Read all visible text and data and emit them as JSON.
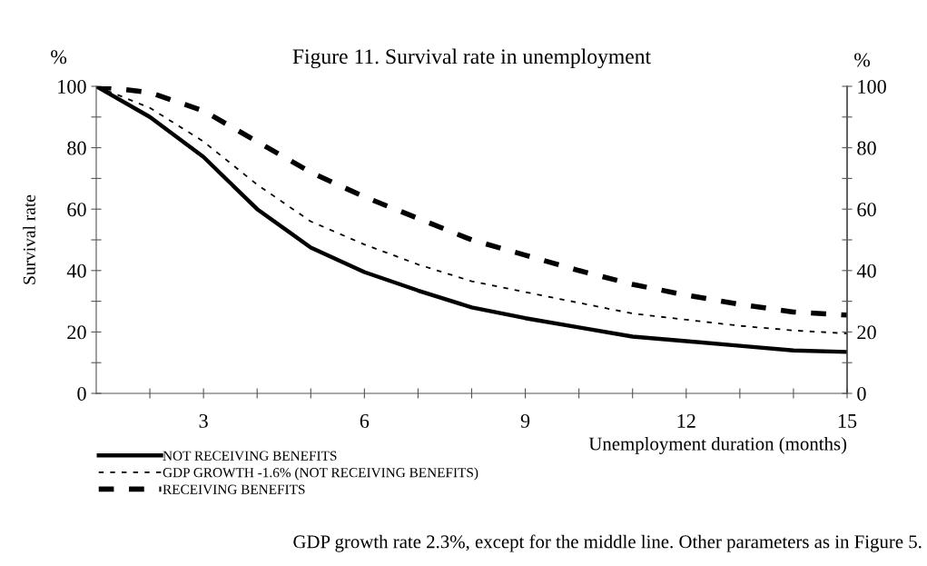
{
  "chart_data": {
    "type": "line",
    "title": "Figure 11. Survival rate in unemployment",
    "xlabel": "Unemployment duration (months)",
    "ylabel": "Survival rate",
    "y2label": "%",
    "annotations": [
      "%",
      "GDP growth rate 2.3%, except for the middle line. Other parameters as in Figure 5."
    ],
    "x": [
      1,
      2,
      3,
      4,
      5,
      6,
      7,
      8,
      9,
      10,
      11,
      12,
      13,
      14,
      15
    ],
    "series": [
      {
        "name": "NOT RECEIVING BENEFITS",
        "color": "#000000",
        "line_style": "solid",
        "values": [
          100,
          90,
          77,
          60,
          47.5,
          39.5,
          33.5,
          28,
          24.5,
          21.5,
          18.5,
          17,
          15.5,
          14,
          13.5
        ]
      },
      {
        "name": "GDP GROWTH -1.6% (NOT RECEIVING BENEFITS)",
        "color": "#000000",
        "line_style": "dotted",
        "values": [
          100,
          93,
          82,
          68,
          56,
          48.5,
          42,
          36.5,
          33,
          29.5,
          26,
          24,
          22,
          20.5,
          19.5
        ]
      },
      {
        "name": "RECEIVING BENEFITS",
        "color": "#000000",
        "line_style": "dashed",
        "values": [
          100,
          98,
          92,
          82,
          72,
          64,
          57,
          50,
          45,
          40,
          35.5,
          32,
          29,
          26.5,
          25.5
        ]
      }
    ],
    "xlim": [
      1,
      15
    ],
    "xticks": [
      {
        "value": 2,
        "label": null
      },
      3,
      {
        "value": 4,
        "label": null
      },
      {
        "value": 5,
        "label": null
      },
      6,
      {
        "value": 7,
        "label": null
      },
      {
        "value": 8,
        "label": null
      },
      9,
      {
        "value": 10,
        "label": null
      },
      {
        "value": 11,
        "label": null
      },
      12,
      {
        "value": 13,
        "label": null
      },
      {
        "value": 14,
        "label": null
      },
      15
    ],
    "ylim": [
      0,
      100
    ],
    "yticks": [
      0,
      {
        "value": 10,
        "label": null
      },
      20,
      {
        "value": 30,
        "label": null
      },
      40,
      {
        "value": 50,
        "label": null
      },
      60,
      {
        "value": 70,
        "label": null
      },
      80,
      {
        "value": 90,
        "label": null
      },
      100
    ],
    "y2lim": [
      0,
      100
    ],
    "y2ticks": [
      0,
      {
        "value": 10,
        "label": null
      },
      20,
      {
        "value": 30,
        "label": null
      },
      40,
      {
        "value": 50,
        "label": null
      },
      60,
      {
        "value": 70,
        "label": null
      },
      80,
      {
        "value": 90,
        "label": null
      },
      100
    ],
    "grid": false,
    "legend": "bottom left"
  }
}
